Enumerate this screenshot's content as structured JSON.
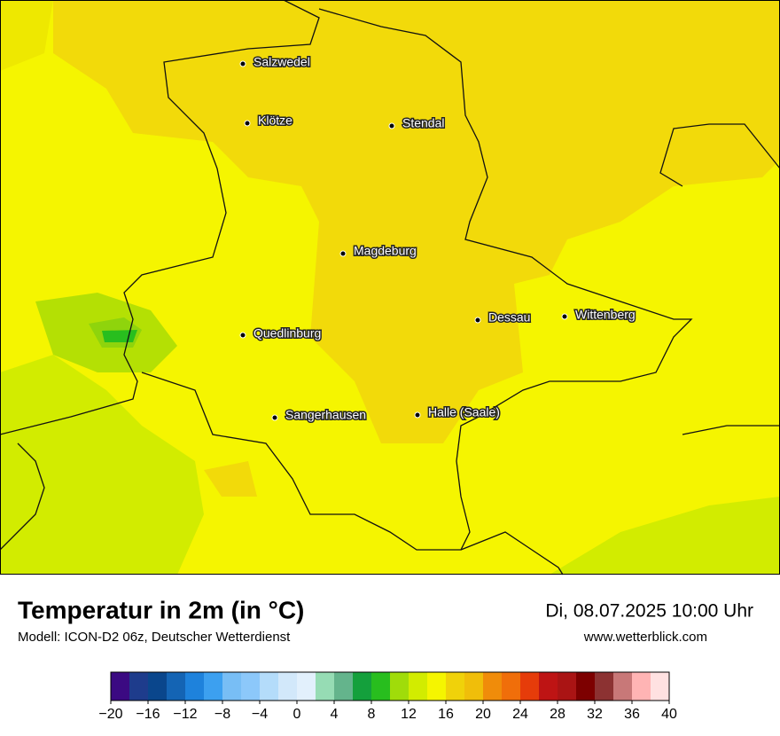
{
  "map": {
    "cities": [
      "Salzwedel",
      "Klötze",
      "Stendal",
      "Magdeburg",
      "Dessau",
      "Wittenberg",
      "Quedlinburg",
      "Sangerhausen",
      "Halle (Saale)"
    ]
  },
  "header": {
    "title": "Temperatur in 2m (in °C)",
    "subtitle": "Modell: ICON-D2 06z, Deutscher Wetterdienst",
    "date": "Di, 08.07.2025 10:00 Uhr",
    "site": "www.wetterblick.com"
  },
  "legend": {
    "colors": [
      "#3b0a82",
      "#1e3c8c",
      "#0a468c",
      "#1464b4",
      "#1e82dc",
      "#3ca0f0",
      "#78bef5",
      "#8cc8fa",
      "#b4dcfa",
      "#d2e8fa",
      "#e2f0fc",
      "#96dcb4",
      "#64b48c",
      "#14a03c",
      "#28be1e",
      "#a0dc0a",
      "#d2ec00",
      "#f5f500",
      "#f0d20a",
      "#f0be0a",
      "#f08c0a",
      "#f06e0a",
      "#e63c0a",
      "#be1414",
      "#aa1414",
      "#7d0000",
      "#8c3232",
      "#c87878",
      "#ffb4b4",
      "#ffe1e1"
    ],
    "ticks": [
      {
        "value": -20,
        "label": "−20"
      },
      {
        "value": -16,
        "label": "−16"
      },
      {
        "value": -12,
        "label": "−12"
      },
      {
        "value": -8,
        "label": "−8"
      },
      {
        "value": -4,
        "label": "−4"
      },
      0,
      4,
      8,
      12,
      16,
      20,
      24,
      28,
      32,
      36,
      40
    ]
  }
}
